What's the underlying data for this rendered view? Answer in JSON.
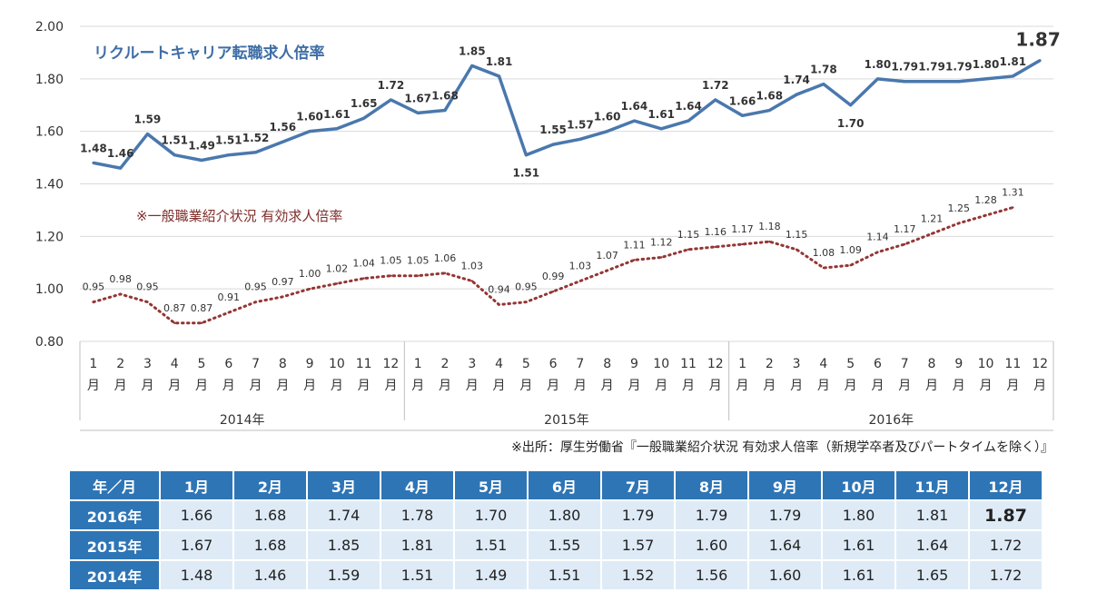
{
  "chart_data": {
    "type": "line",
    "title": "リクルートキャリア転職求人倍率",
    "annotation": "※一般職業紹介状況 有効求人倍率",
    "source_note": "※出所：厚生労働省『一般職業紹介状況 有効求人倍率（新規学卒者及びパートタイムを除く）』",
    "ylim": [
      0.8,
      2.0
    ],
    "yticks": [
      "2.00",
      "1.80",
      "1.60",
      "1.40",
      "1.20",
      "1.00",
      "0.80"
    ],
    "ytick_values": [
      2.0,
      1.8,
      1.6,
      1.4,
      1.2,
      1.0,
      0.8
    ],
    "month_number_labels": [
      "1",
      "2",
      "3",
      "4",
      "5",
      "6",
      "7",
      "8",
      "9",
      "10",
      "11",
      "12",
      "1",
      "2",
      "3",
      "4",
      "5",
      "6",
      "7",
      "8",
      "9",
      "10",
      "11",
      "12",
      "1",
      "2",
      "3",
      "4",
      "5",
      "6",
      "7",
      "8",
      "9",
      "10",
      "11",
      "12"
    ],
    "month_suffix": "月",
    "year_groups": [
      "2014年",
      "2015年",
      "2016年"
    ],
    "series": [
      {
        "name": "リクルートキャリア転職求人倍率",
        "style": "solid",
        "color": "#4a78ad",
        "values": [
          1.48,
          1.46,
          1.59,
          1.51,
          1.49,
          1.51,
          1.52,
          1.56,
          1.6,
          1.61,
          1.65,
          1.72,
          1.67,
          1.68,
          1.85,
          1.81,
          1.51,
          1.55,
          1.57,
          1.6,
          1.64,
          1.61,
          1.64,
          1.72,
          1.66,
          1.68,
          1.74,
          1.78,
          1.7,
          1.8,
          1.79,
          1.79,
          1.79,
          1.8,
          1.81,
          1.87
        ],
        "labels": [
          "1.48",
          "1.46",
          "1.59",
          "1.51",
          "1.49",
          "1.51",
          "1.52",
          "1.56",
          "1.60",
          "1.61",
          "1.65",
          "1.72",
          "1.67",
          "1.68",
          "1.85",
          "1.81",
          "1.51",
          "1.55",
          "1.57",
          "1.60",
          "1.64",
          "1.61",
          "1.64",
          "1.72",
          "1.66",
          "1.68",
          "1.74",
          "1.78",
          "1.70",
          "1.80",
          "1.79",
          "1.79",
          "1.79",
          "1.80",
          "1.81",
          "1.87"
        ]
      },
      {
        "name": "※一般職業紹介状況 有効求人倍率",
        "style": "dotted",
        "color": "#943634",
        "values": [
          0.95,
          0.98,
          0.95,
          0.87,
          0.87,
          0.91,
          0.95,
          0.97,
          1.0,
          1.02,
          1.04,
          1.05,
          1.05,
          1.06,
          1.03,
          0.94,
          0.95,
          0.99,
          1.03,
          1.07,
          1.11,
          1.12,
          1.15,
          1.16,
          1.17,
          1.18,
          1.15,
          1.08,
          1.09,
          1.14,
          1.17,
          1.21,
          1.25,
          1.28,
          1.31
        ],
        "labels": [
          "0.95",
          "0.98",
          "0.95",
          "0.87",
          "0.87",
          "0.91",
          "0.95",
          "0.97",
          "1.00",
          "1.02",
          "1.04",
          "1.05",
          "1.05",
          "1.06",
          "1.03",
          "0.94",
          "0.95",
          "0.99",
          "1.03",
          "1.07",
          "1.11",
          "1.12",
          "1.15",
          "1.16",
          "1.17",
          "1.18",
          "1.15",
          "1.08",
          "1.09",
          "1.14",
          "1.17",
          "1.21",
          "1.25",
          "1.28",
          "1.31"
        ]
      }
    ]
  },
  "table": {
    "corner": "年／月",
    "columns": [
      "1月",
      "2月",
      "3月",
      "4月",
      "5月",
      "6月",
      "7月",
      "8月",
      "9月",
      "10月",
      "11月",
      "12月"
    ],
    "rows": [
      {
        "year": "2016年",
        "values": [
          "1.66",
          "1.68",
          "1.74",
          "1.78",
          "1.70",
          "1.80",
          "1.79",
          "1.79",
          "1.79",
          "1.80",
          "1.81",
          "1.87"
        ]
      },
      {
        "year": "2015年",
        "values": [
          "1.67",
          "1.68",
          "1.85",
          "1.81",
          "1.51",
          "1.55",
          "1.57",
          "1.60",
          "1.64",
          "1.61",
          "1.64",
          "1.72"
        ]
      },
      {
        "year": "2014年",
        "values": [
          "1.48",
          "1.46",
          "1.59",
          "1.51",
          "1.49",
          "1.51",
          "1.52",
          "1.56",
          "1.60",
          "1.61",
          "1.65",
          "1.72"
        ]
      }
    ]
  }
}
